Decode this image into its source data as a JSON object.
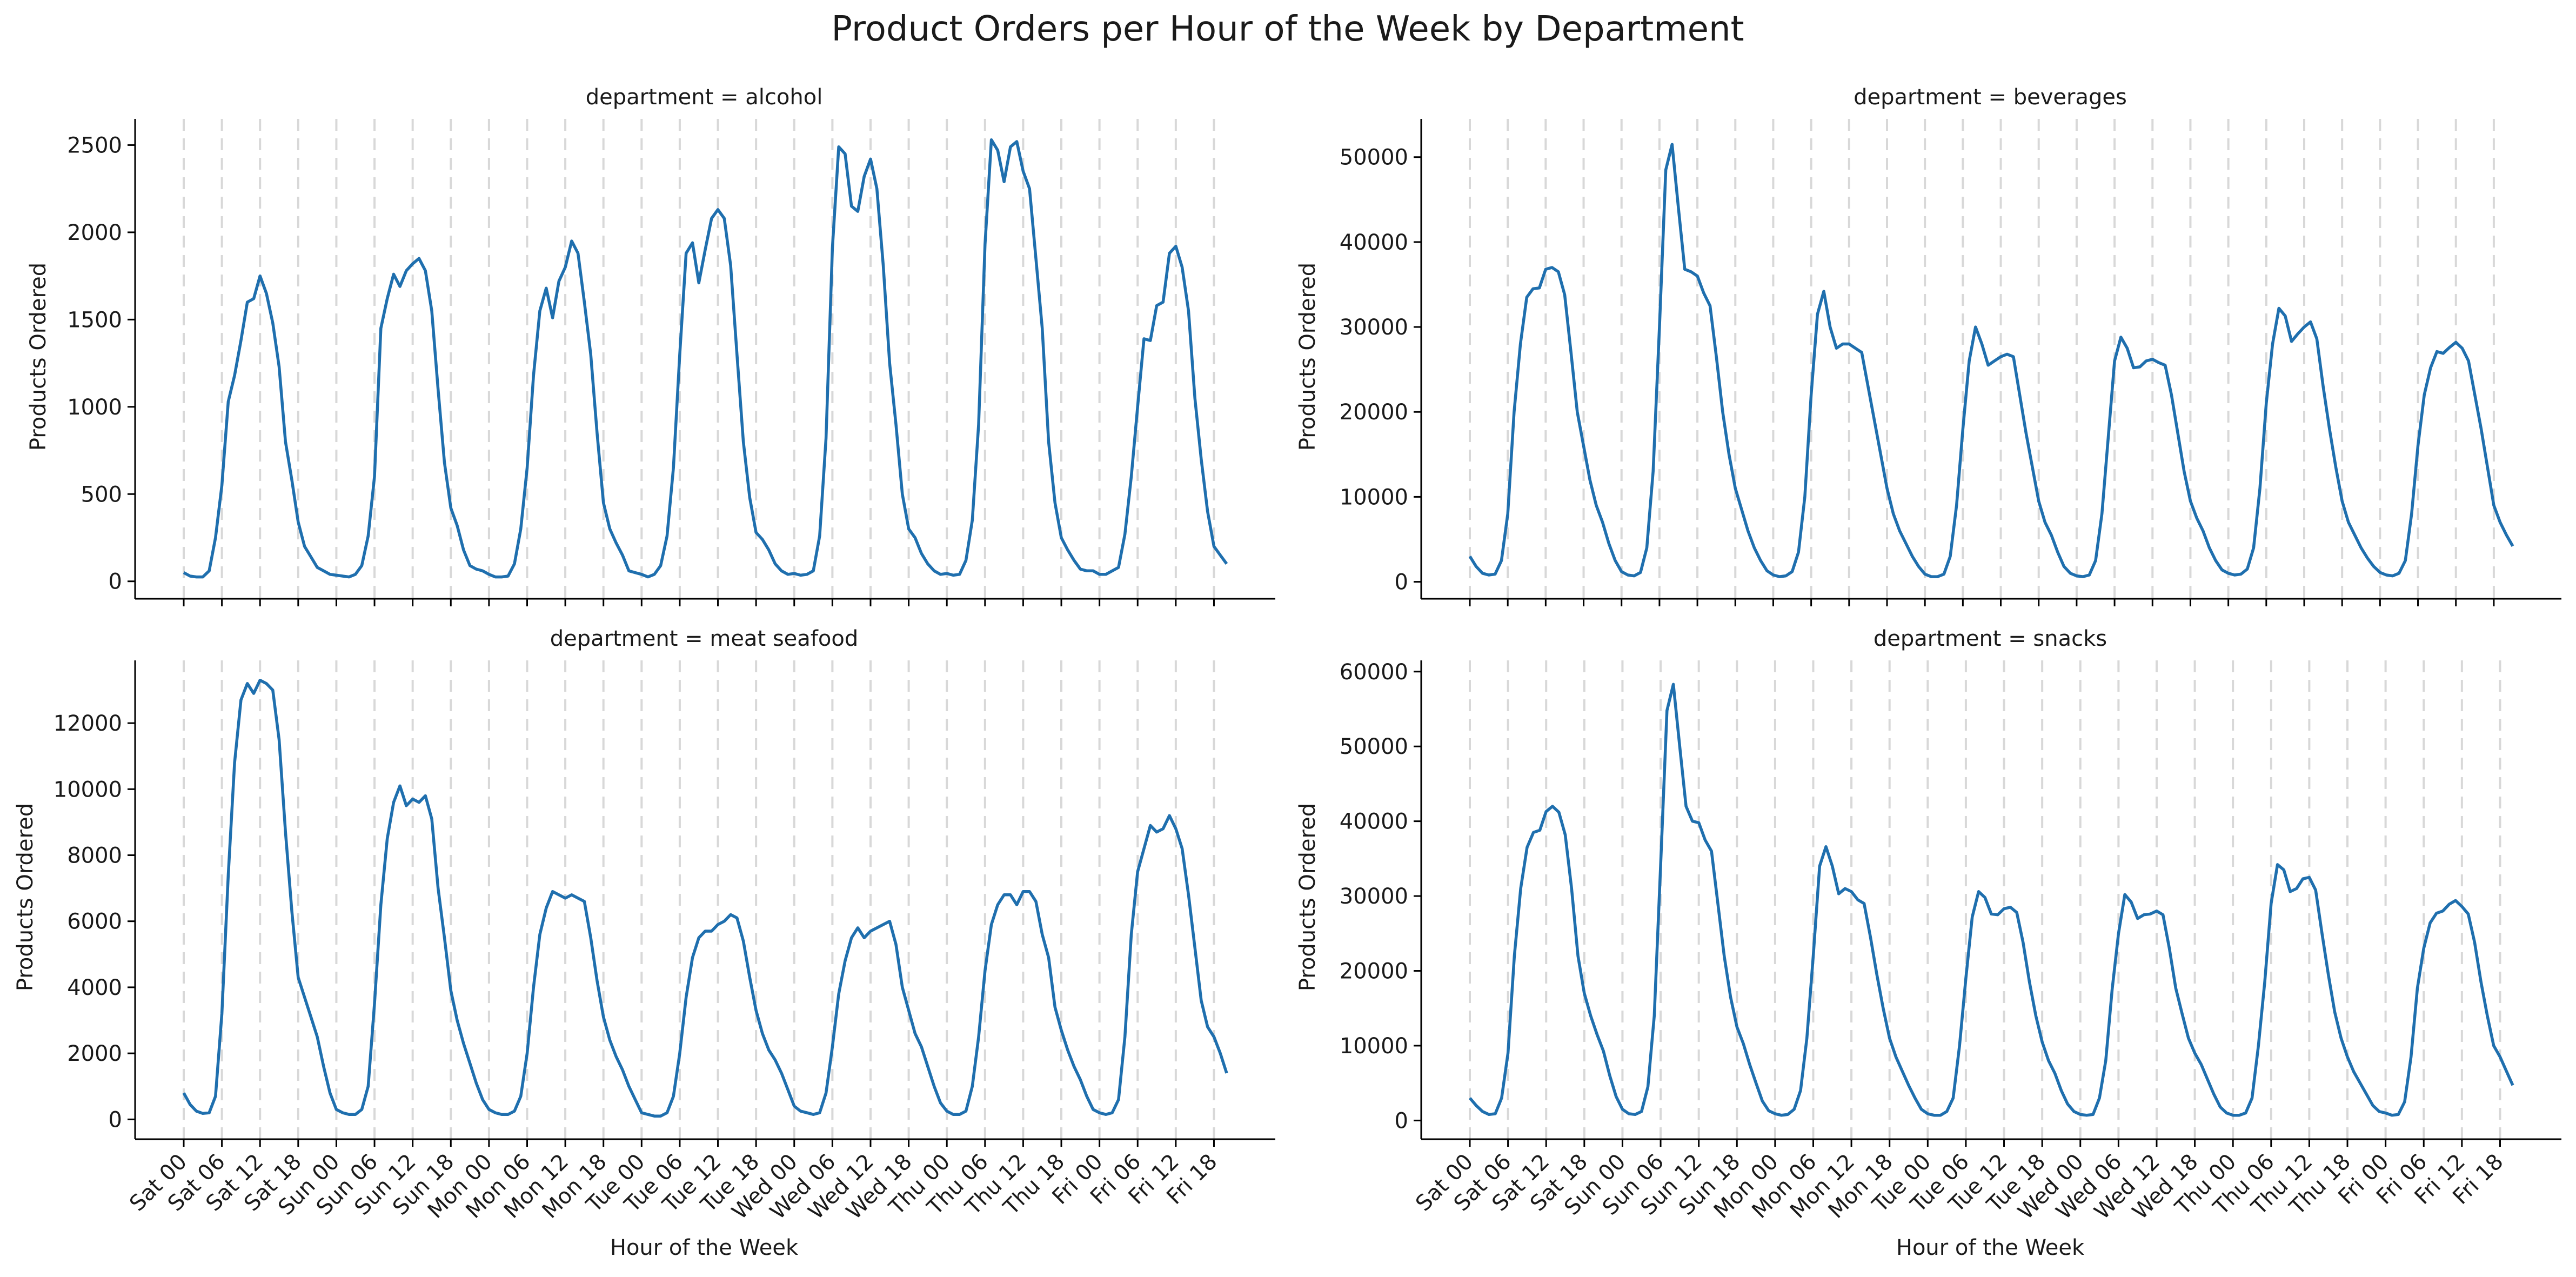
{
  "figure": {
    "title": "Product Orders per Hour of the Week by Department"
  },
  "chart_data": [
    {
      "type": "line",
      "title": "department = alcohol",
      "xlabel": "Hour of the Week",
      "ylabel": "Products Ordered",
      "xtick_labels": [
        "Sat 00",
        "Sat 06",
        "Sat 12",
        "Sat 18",
        "Sun 00",
        "Sun 06",
        "Sun 12",
        "Sun 18",
        "Mon 00",
        "Mon 06",
        "Mon 12",
        "Mon 18",
        "Tue 00",
        "Tue 06",
        "Tue 12",
        "Tue 18",
        "Wed 00",
        "Wed 06",
        "Wed 12",
        "Wed 18",
        "Thu 00",
        "Thu 06",
        "Thu 12",
        "Thu 18",
        "Fri 00",
        "Fri 06",
        "Fri 12",
        "Fri 18"
      ],
      "ylim": [
        -100,
        2650
      ],
      "yticks": [
        0,
        500,
        1000,
        1500,
        2000,
        2500
      ],
      "series": [
        {
          "values": [
            50,
            30,
            25,
            25,
            60,
            250,
            550,
            1030,
            1180,
            1380,
            1600,
            1620,
            1750,
            1650,
            1480,
            1230,
            800,
            580,
            340,
            200,
            140,
            80,
            60,
            40,
            35,
            30,
            25,
            40,
            90,
            260,
            600,
            1450,
            1620,
            1760,
            1690,
            1780,
            1820,
            1850,
            1780,
            1550,
            1100,
            680,
            420,
            320,
            180,
            90,
            70,
            60,
            40,
            25,
            25,
            30,
            100,
            300,
            650,
            1180,
            1550,
            1680,
            1510,
            1720,
            1800,
            1950,
            1880,
            1600,
            1300,
            850,
            450,
            300,
            220,
            150,
            60,
            50,
            40,
            25,
            40,
            90,
            260,
            650,
            1300,
            1880,
            1940,
            1710,
            1900,
            2080,
            2130,
            2080,
            1810,
            1300,
            800,
            480,
            280,
            240,
            180,
            100,
            60,
            40,
            45,
            35,
            40,
            60,
            260,
            820,
            1910,
            2490,
            2450,
            2150,
            2120,
            2320,
            2420,
            2250,
            1810,
            1250,
            900,
            500,
            300,
            250,
            160,
            100,
            60,
            40,
            45,
            35,
            40,
            120,
            350,
            900,
            1930,
            2530,
            2470,
            2290,
            2490,
            2520,
            2350,
            2250,
            1850,
            1450,
            800,
            450,
            250,
            180,
            120,
            70,
            60,
            60,
            40,
            40,
            60,
            80,
            270,
            600,
            1000,
            1390,
            1380,
            1580,
            1600,
            1880,
            1920,
            1800,
            1550,
            1050,
            700,
            400,
            200,
            150,
            100
          ]
        }
      ]
    },
    {
      "type": "line",
      "title": "department = beverages",
      "xlabel": "Hour of the Week",
      "ylabel": "Products Ordered",
      "xtick_labels": [
        "Sat 00",
        "Sat 06",
        "Sat 12",
        "Sat 18",
        "Sun 00",
        "Sun 06",
        "Sun 12",
        "Sun 18",
        "Mon 00",
        "Mon 06",
        "Mon 12",
        "Mon 18",
        "Tue 00",
        "Tue 06",
        "Tue 12",
        "Tue 18",
        "Wed 00",
        "Wed 06",
        "Wed 12",
        "Wed 18",
        "Thu 00",
        "Thu 06",
        "Thu 12",
        "Thu 18",
        "Fri 00",
        "Fri 06",
        "Fri 12",
        "Fri 18"
      ],
      "ylim": [
        -2000,
        54500
      ],
      "yticks": [
        0,
        10000,
        20000,
        30000,
        40000,
        50000
      ],
      "series": [
        {
          "values": [
            3000,
            1800,
            1000,
            800,
            900,
            2500,
            8000,
            20000,
            28000,
            33500,
            34500,
            34600,
            36800,
            37000,
            36500,
            33800,
            27000,
            20000,
            16000,
            12000,
            9000,
            7000,
            4500,
            2500,
            1200,
            800,
            700,
            1100,
            4000,
            13000,
            30000,
            48500,
            51500,
            44000,
            36800,
            36500,
            36000,
            34000,
            32500,
            26500,
            20000,
            15000,
            11000,
            8500,
            6000,
            4000,
            2500,
            1300,
            800,
            600,
            700,
            1200,
            3500,
            10000,
            22000,
            31500,
            34200,
            30000,
            27500,
            28000,
            28000,
            27500,
            27000,
            23000,
            19000,
            15000,
            11000,
            8000,
            6000,
            4500,
            3000,
            1800,
            900,
            600,
            600,
            900,
            3000,
            9000,
            18000,
            26000,
            30000,
            28000,
            25500,
            26000,
            26500,
            26800,
            26500,
            22000,
            17500,
            13500,
            9500,
            7000,
            5500,
            3500,
            1800,
            1000,
            700,
            600,
            800,
            2500,
            8000,
            17000,
            26000,
            28800,
            27500,
            25200,
            25300,
            26000,
            26200,
            25800,
            25500,
            22000,
            17500,
            13000,
            9500,
            7500,
            6000,
            4000,
            2500,
            1400,
            1000,
            800,
            900,
            1500,
            4000,
            11000,
            21000,
            28000,
            32200,
            31300,
            28300,
            29200,
            30000,
            30600,
            28600,
            23000,
            18000,
            13500,
            9500,
            7000,
            5500,
            4000,
            2800,
            1800,
            1100,
            800,
            700,
            1000,
            2500,
            8000,
            16000,
            22000,
            25200,
            27100,
            26900,
            27600,
            28200,
            27500,
            26000,
            22000,
            18000,
            13500,
            9000,
            7000,
            5500,
            4200
          ]
        }
      ]
    },
    {
      "type": "line",
      "title": "department = meat seafood",
      "xlabel": "Hour of the Week",
      "ylabel": "Products Ordered",
      "xtick_labels": [
        "Sat 00",
        "Sat 06",
        "Sat 12",
        "Sat 18",
        "Sun 00",
        "Sun 06",
        "Sun 12",
        "Sun 18",
        "Mon 00",
        "Mon 06",
        "Mon 12",
        "Mon 18",
        "Tue 00",
        "Tue 06",
        "Tue 12",
        "Tue 18",
        "Wed 00",
        "Wed 06",
        "Wed 12",
        "Wed 18",
        "Thu 00",
        "Thu 06",
        "Thu 12",
        "Thu 18",
        "Fri 00",
        "Fri 06",
        "Fri 12",
        "Fri 18"
      ],
      "ylim": [
        -600,
        13900
      ],
      "yticks": [
        0,
        2000,
        4000,
        6000,
        8000,
        10000,
        12000
      ],
      "series": [
        {
          "values": [
            800,
            450,
            250,
            180,
            200,
            700,
            3200,
            7400,
            10800,
            12700,
            13200,
            12900,
            13300,
            13200,
            13000,
            11500,
            8700,
            6300,
            4300,
            3700,
            3100,
            2500,
            1600,
            800,
            300,
            200,
            150,
            150,
            300,
            1000,
            3500,
            6500,
            8500,
            9600,
            10100,
            9500,
            9700,
            9600,
            9800,
            9100,
            7000,
            5500,
            3900,
            3000,
            2300,
            1700,
            1100,
            600,
            300,
            200,
            150,
            150,
            250,
            700,
            2000,
            4000,
            5600,
            6400,
            6900,
            6800,
            6700,
            6800,
            6700,
            6600,
            5500,
            4200,
            3100,
            2400,
            1900,
            1500,
            1000,
            600,
            200,
            150,
            100,
            100,
            200,
            700,
            2000,
            3700,
            4900,
            5500,
            5700,
            5700,
            5900,
            6000,
            6200,
            6100,
            5400,
            4300,
            3300,
            2600,
            2100,
            1800,
            1400,
            900,
            400,
            250,
            200,
            150,
            200,
            800,
            2200,
            3800,
            4800,
            5500,
            5800,
            5500,
            5700,
            5800,
            5900,
            6000,
            5300,
            4000,
            3300,
            2600,
            2200,
            1600,
            1000,
            500,
            250,
            150,
            150,
            250,
            1000,
            2500,
            4500,
            5900,
            6500,
            6800,
            6800,
            6500,
            6900,
            6900,
            6600,
            5600,
            4900,
            3400,
            2700,
            2100,
            1600,
            1200,
            700,
            300,
            200,
            150,
            200,
            600,
            2500,
            5600,
            7500,
            8200,
            8900,
            8700,
            8800,
            9200,
            8800,
            8200,
            6800,
            5200,
            3600,
            2800,
            2500,
            2000,
            1400
          ]
        }
      ]
    },
    {
      "type": "line",
      "title": "department = snacks",
      "xlabel": "Hour of the Week",
      "ylabel": "Products Ordered",
      "xtick_labels": [
        "Sat 00",
        "Sat 06",
        "Sat 12",
        "Sat 18",
        "Sun 00",
        "Sun 06",
        "Sun 12",
        "Sun 18",
        "Mon 00",
        "Mon 06",
        "Mon 12",
        "Mon 18",
        "Tue 00",
        "Tue 06",
        "Tue 12",
        "Tue 18",
        "Wed 00",
        "Wed 06",
        "Wed 12",
        "Wed 18",
        "Thu 00",
        "Thu 06",
        "Thu 12",
        "Thu 18",
        "Fri 00",
        "Fri 06",
        "Fri 12",
        "Fri 18"
      ],
      "ylim": [
        -2500,
        61500
      ],
      "yticks": [
        0,
        10000,
        20000,
        30000,
        40000,
        50000,
        60000
      ],
      "series": [
        {
          "values": [
            3000,
            2000,
            1200,
            800,
            900,
            3000,
            9000,
            22000,
            31000,
            36500,
            38500,
            38800,
            41300,
            42000,
            41200,
            38200,
            31000,
            22000,
            17000,
            14000,
            11500,
            9300,
            6000,
            3200,
            1500,
            900,
            800,
            1200,
            4500,
            14000,
            34000,
            54800,
            58300,
            50000,
            42000,
            40000,
            39800,
            37500,
            36000,
            29000,
            22000,
            16500,
            12500,
            10300,
            7500,
            5000,
            2600,
            1300,
            900,
            700,
            800,
            1500,
            4000,
            11000,
            22000,
            34000,
            36600,
            34000,
            30300,
            31000,
            30600,
            29500,
            29000,
            24500,
            19500,
            15000,
            11000,
            8500,
            6600,
            4700,
            3000,
            1500,
            900,
            700,
            700,
            1200,
            3000,
            10000,
            19000,
            27200,
            30600,
            29800,
            27600,
            27500,
            28300,
            28500,
            27800,
            23800,
            18500,
            14000,
            10500,
            8000,
            6300,
            4000,
            2200,
            1200,
            800,
            700,
            800,
            3000,
            8000,
            17500,
            25000,
            30200,
            29200,
            27000,
            27500,
            27600,
            28000,
            27500,
            23000,
            17700,
            14300,
            11000,
            9000,
            7500,
            5500,
            3500,
            1800,
            1000,
            700,
            700,
            1000,
            3000,
            10000,
            18500,
            29000,
            34200,
            33500,
            30600,
            31000,
            32300,
            32500,
            30800,
            25000,
            19500,
            14500,
            11000,
            8500,
            6500,
            5000,
            3500,
            2000,
            1200,
            1000,
            700,
            800,
            2500,
            8500,
            17700,
            23000,
            26400,
            27700,
            28000,
            28900,
            29400,
            28600,
            27600,
            23800,
            18500,
            14000,
            10000,
            8500,
            6600,
            4700
          ]
        }
      ]
    }
  ]
}
